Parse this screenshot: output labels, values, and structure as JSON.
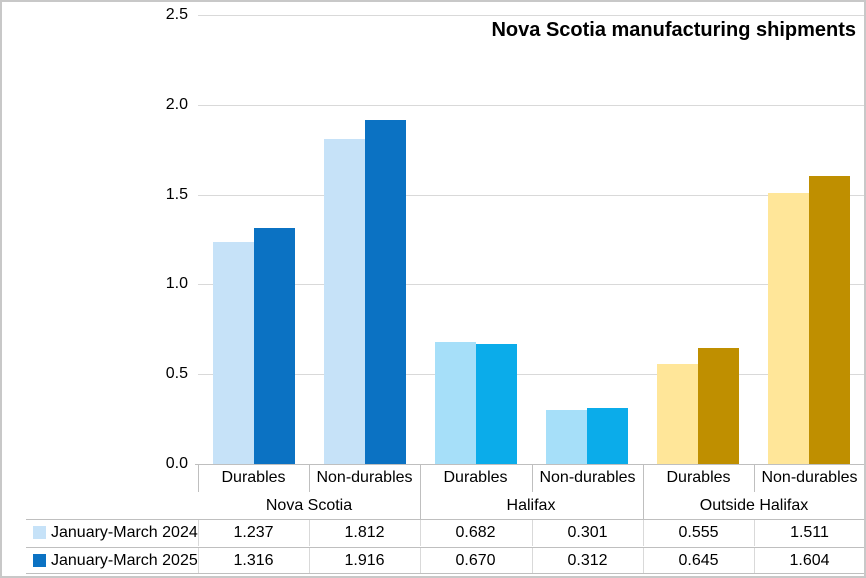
{
  "chart_data": {
    "type": "bar",
    "title": "Nova Scotia manufacturing shipments",
    "ylim": [
      0,
      2.5
    ],
    "ytick_labels": [
      "2.5",
      "2.0",
      "1.5",
      "1.0",
      "0.5",
      "0.0"
    ],
    "grid": true,
    "legend_position": "bottom-left data table rows",
    "gridline_color": "#D9D9D9",
    "axis_line_color": "#BFBFBF",
    "table_line_color": "#BFBFBF",
    "categories": [
      "Durables",
      "Non-durables",
      "Durables",
      "Non-durables",
      "Durables",
      "Non-durables"
    ],
    "groups": [
      {
        "label": "Nova Scotia",
        "span": 2,
        "color_2024": "#C6E2F8",
        "color_2025": "#0B72C3"
      },
      {
        "label": "Halifax",
        "span": 2,
        "color_2024": "#A6DFF9",
        "color_2025": "#0BACEA"
      },
      {
        "label": "Outside Halifax",
        "span": 2,
        "color_2024": "#FFE699",
        "color_2025": "#BF8F00"
      }
    ],
    "series": [
      {
        "name": "January-March 2024",
        "legend_color": "#C6E2F8",
        "values": [
          1.237,
          1.812,
          0.682,
          0.301,
          0.555,
          1.511
        ],
        "values_display": [
          "1.237",
          "1.812",
          "0.682",
          "0.301",
          "0.555",
          "1.511"
        ]
      },
      {
        "name": "January-March 2025",
        "legend_color": "#0B72C3",
        "values": [
          1.316,
          1.916,
          0.67,
          0.312,
          0.645,
          1.604
        ],
        "values_display": [
          "1.316",
          "1.916",
          "0.670",
          "0.312",
          "0.645",
          "1.604"
        ]
      }
    ]
  }
}
